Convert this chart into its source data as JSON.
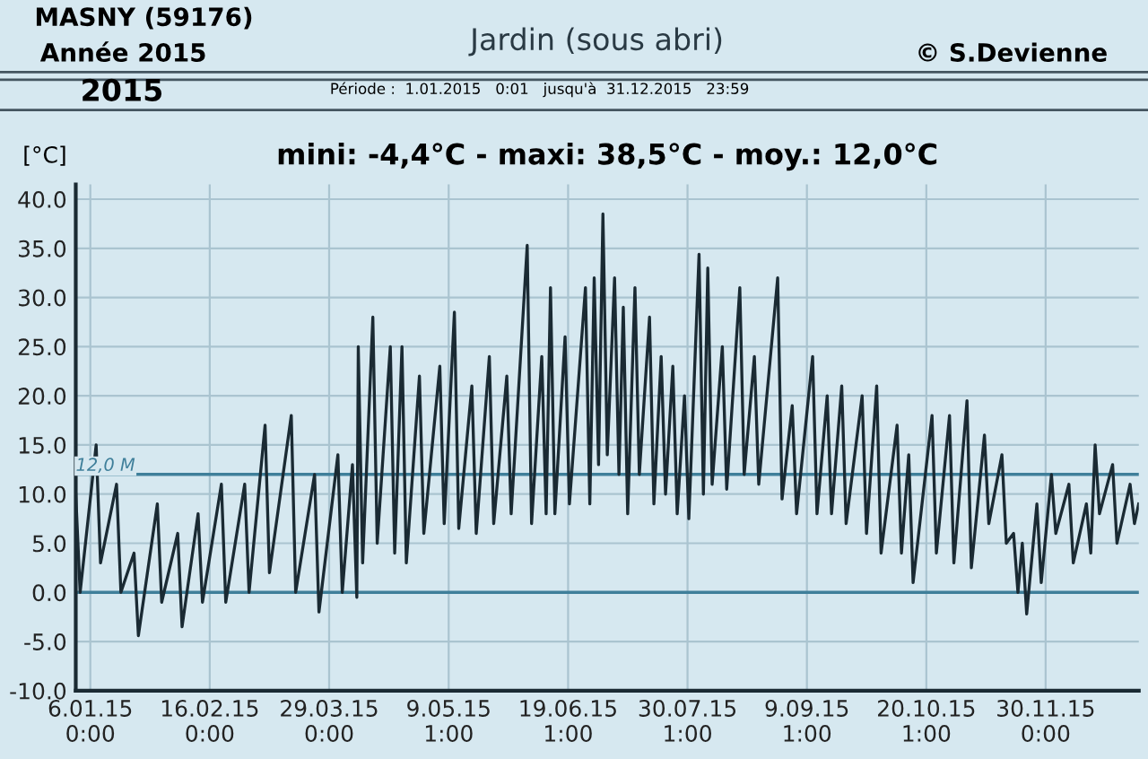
{
  "chart_data": {
    "type": "line",
    "title": "Jardin (sous abri)",
    "subtitle": "mini: -4,4°C - maxi: 38,5°C - moy.: 12,0°C",
    "ylabel": "[°C]",
    "annotations": [
      "MASNY (59176)",
      "Année 2015",
      "© S.Devienne",
      "2015",
      "Période :  1.01.2015   0:01   jusqu'à  31.12.2015   23:59"
    ],
    "xlim": [
      "2015-01-01T00:00",
      "2015-12-31T23:59"
    ],
    "xticks": [
      {
        "value": "2015-01-06T00:00",
        "label": "6.01.15\n0:00"
      },
      {
        "value": "2015-02-16T00:00",
        "label": "16.02.15\n0:00"
      },
      {
        "value": "2015-03-29T00:00",
        "label": "29.03.15\n0:00"
      },
      {
        "value": "2015-05-09T01:00",
        "label": "9.05.15\n1:00"
      },
      {
        "value": "2015-06-19T01:00",
        "label": "19.06.15\n1:00"
      },
      {
        "value": "2015-07-30T01:00",
        "label": "30.07.15\n1:00"
      },
      {
        "value": "2015-09-09T01:00",
        "label": "9.09.15\n1:00"
      },
      {
        "value": "2015-10-20T01:00",
        "label": "20.10.15\n1:00"
      },
      {
        "value": "2015-11-30T00:00",
        "label": "30.11.15\n0:00"
      }
    ],
    "ylim": [
      -10,
      41.5
    ],
    "yticks": [
      {
        "value": -10,
        "label": "-10.0"
      },
      {
        "value": -5,
        "label": "-5.0"
      },
      {
        "value": 0,
        "label": "0.0"
      },
      {
        "value": 5,
        "label": "5.0"
      },
      {
        "value": 10,
        "label": "10.0"
      },
      {
        "value": 15,
        "label": "15.0"
      },
      {
        "value": 20,
        "label": "20.0"
      },
      {
        "value": 25,
        "label": "25.0"
      },
      {
        "value": 30,
        "label": "30.0"
      },
      {
        "value": 35,
        "label": "35.0"
      },
      {
        "value": 40,
        "label": "40.0"
      }
    ],
    "grid": true,
    "ref_lines": [
      {
        "axis": "y",
        "value": 0,
        "color": "#3f7f9a"
      },
      {
        "axis": "y",
        "value": 12.0,
        "label": "12,0 M",
        "color": "#3f7f9a"
      }
    ],
    "series": [
      {
        "color": "#1a2a33",
        "x": [
          "2015-01-01T00:00",
          "2015-01-02T12:00",
          "2015-01-08T00:00",
          "2015-01-09T12:00",
          "2015-01-15T00:00",
          "2015-01-16T12:00",
          "2015-01-21T00:00",
          "2015-01-22T12:00",
          "2015-01-29T00:00",
          "2015-01-30T12:00",
          "2015-02-05T00:00",
          "2015-02-06T12:00",
          "2015-02-12T00:00",
          "2015-02-13T12:00",
          "2015-02-20T00:00",
          "2015-02-21T12:00",
          "2015-02-28T00:00",
          "2015-03-01T12:00",
          "2015-03-07T00:00",
          "2015-03-08T12:00",
          "2015-03-16T00:00",
          "2015-03-17T12:00",
          "2015-03-24T00:00",
          "2015-03-25T12:00",
          "2015-04-01T00:00",
          "2015-04-02T12:00",
          "2015-04-06T00:00",
          "2015-04-07T12:00",
          "2015-04-08T00:00",
          "2015-04-09T12:00",
          "2015-04-13T00:00",
          "2015-04-14T12:00",
          "2015-04-19T00:00",
          "2015-04-20T12:00",
          "2015-04-23T00:00",
          "2015-04-24T12:00",
          "2015-04-29T00:00",
          "2015-04-30T12:00",
          "2015-05-06T00:00",
          "2015-05-07T12:00",
          "2015-05-11T00:00",
          "2015-05-12T12:00",
          "2015-05-17T00:00",
          "2015-05-18T12:00",
          "2015-05-23T00:00",
          "2015-05-24T12:00",
          "2015-05-29T00:00",
          "2015-05-30T12:00",
          "2015-06-05T00:00",
          "2015-06-06T12:00",
          "2015-06-10T00:00",
          "2015-06-11T12:00",
          "2015-06-13T00:00",
          "2015-06-14T12:00",
          "2015-06-18T00:00",
          "2015-06-19T12:00",
          "2015-06-25T00:00",
          "2015-06-26T12:00",
          "2015-06-28T00:00",
          "2015-06-29T12:00",
          "2015-07-01T00:00",
          "2015-07-02T12:00",
          "2015-07-05T00:00",
          "2015-07-06T12:00",
          "2015-07-08T00:00",
          "2015-07-09T12:00",
          "2015-07-12T00:00",
          "2015-07-13T12:00",
          "2015-07-17T00:00",
          "2015-07-18T12:00",
          "2015-07-21T00:00",
          "2015-07-22T12:00",
          "2015-07-25T00:00",
          "2015-07-26T12:00",
          "2015-07-29T00:00",
          "2015-07-30T12:00",
          "2015-08-03T00:00",
          "2015-08-04T12:00",
          "2015-08-06T00:00",
          "2015-08-07T12:00",
          "2015-08-11T00:00",
          "2015-08-12T12:00",
          "2015-08-17T00:00",
          "2015-08-18T12:00",
          "2015-08-22T00:00",
          "2015-08-23T12:00",
          "2015-08-30T00:00",
          "2015-08-31T12:00",
          "2015-09-04T00:00",
          "2015-09-05T12:00",
          "2015-09-11T00:00",
          "2015-09-12T12:00",
          "2015-09-16T00:00",
          "2015-09-17T12:00",
          "2015-09-21T00:00",
          "2015-09-22T12:00",
          "2015-09-28T00:00",
          "2015-09-29T12:00",
          "2015-10-03T00:00",
          "2015-10-04T12:00",
          "2015-10-10T00:00",
          "2015-10-11T12:00",
          "2015-10-14T00:00",
          "2015-10-15T12:00",
          "2015-10-22T00:00",
          "2015-10-23T12:00",
          "2015-10-28T00:00",
          "2015-10-29T12:00",
          "2015-11-03T00:00",
          "2015-11-04T12:00",
          "2015-11-09T00:00",
          "2015-11-10T12:00",
          "2015-11-15T00:00",
          "2015-11-16T12:00",
          "2015-11-19T00:00",
          "2015-11-20T12:00",
          "2015-11-22T00:00",
          "2015-11-23T12:00",
          "2015-11-27T00:00",
          "2015-11-28T12:00",
          "2015-12-02T00:00",
          "2015-12-03T12:00",
          "2015-12-08T00:00",
          "2015-12-09T12:00",
          "2015-12-14T00:00",
          "2015-12-15T12:00",
          "2015-12-17T00:00",
          "2015-12-18T12:00",
          "2015-12-23T00:00",
          "2015-12-24T12:00",
          "2015-12-29T00:00",
          "2015-12-30T12:00",
          "2015-12-31T23:00"
        ],
        "values": [
          10,
          0,
          15,
          3,
          11,
          0,
          4,
          -4.4,
          9,
          -1,
          6,
          -3.5,
          8,
          -1,
          11,
          -1,
          11,
          0,
          17,
          2,
          18,
          0,
          12,
          -2,
          14,
          0,
          13,
          -0.5,
          25,
          3,
          28,
          5,
          25,
          4,
          25,
          3,
          22,
          6,
          23,
          7,
          28.5,
          6.5,
          21,
          6,
          24,
          7,
          22,
          8,
          35.3,
          7,
          24,
          8,
          31,
          8,
          26,
          9,
          31,
          9,
          32,
          13,
          38.5,
          14,
          32,
          12,
          29,
          8,
          31,
          12,
          28,
          9,
          24,
          10,
          23,
          8,
          20,
          7.5,
          34.4,
          10,
          33,
          11,
          25,
          10.5,
          31,
          12,
          24,
          11,
          32,
          9.5,
          19,
          8,
          24,
          8,
          20,
          8,
          21,
          7,
          20,
          6,
          21,
          4,
          17,
          4,
          14,
          1,
          18,
          4,
          18,
          3,
          19.5,
          2.5,
          16,
          7,
          14,
          5,
          6,
          0,
          5,
          -2.2,
          9,
          1,
          12,
          6,
          11,
          3,
          9,
          4,
          15,
          8,
          13,
          5,
          11,
          7,
          9
        ]
      }
    ]
  }
}
